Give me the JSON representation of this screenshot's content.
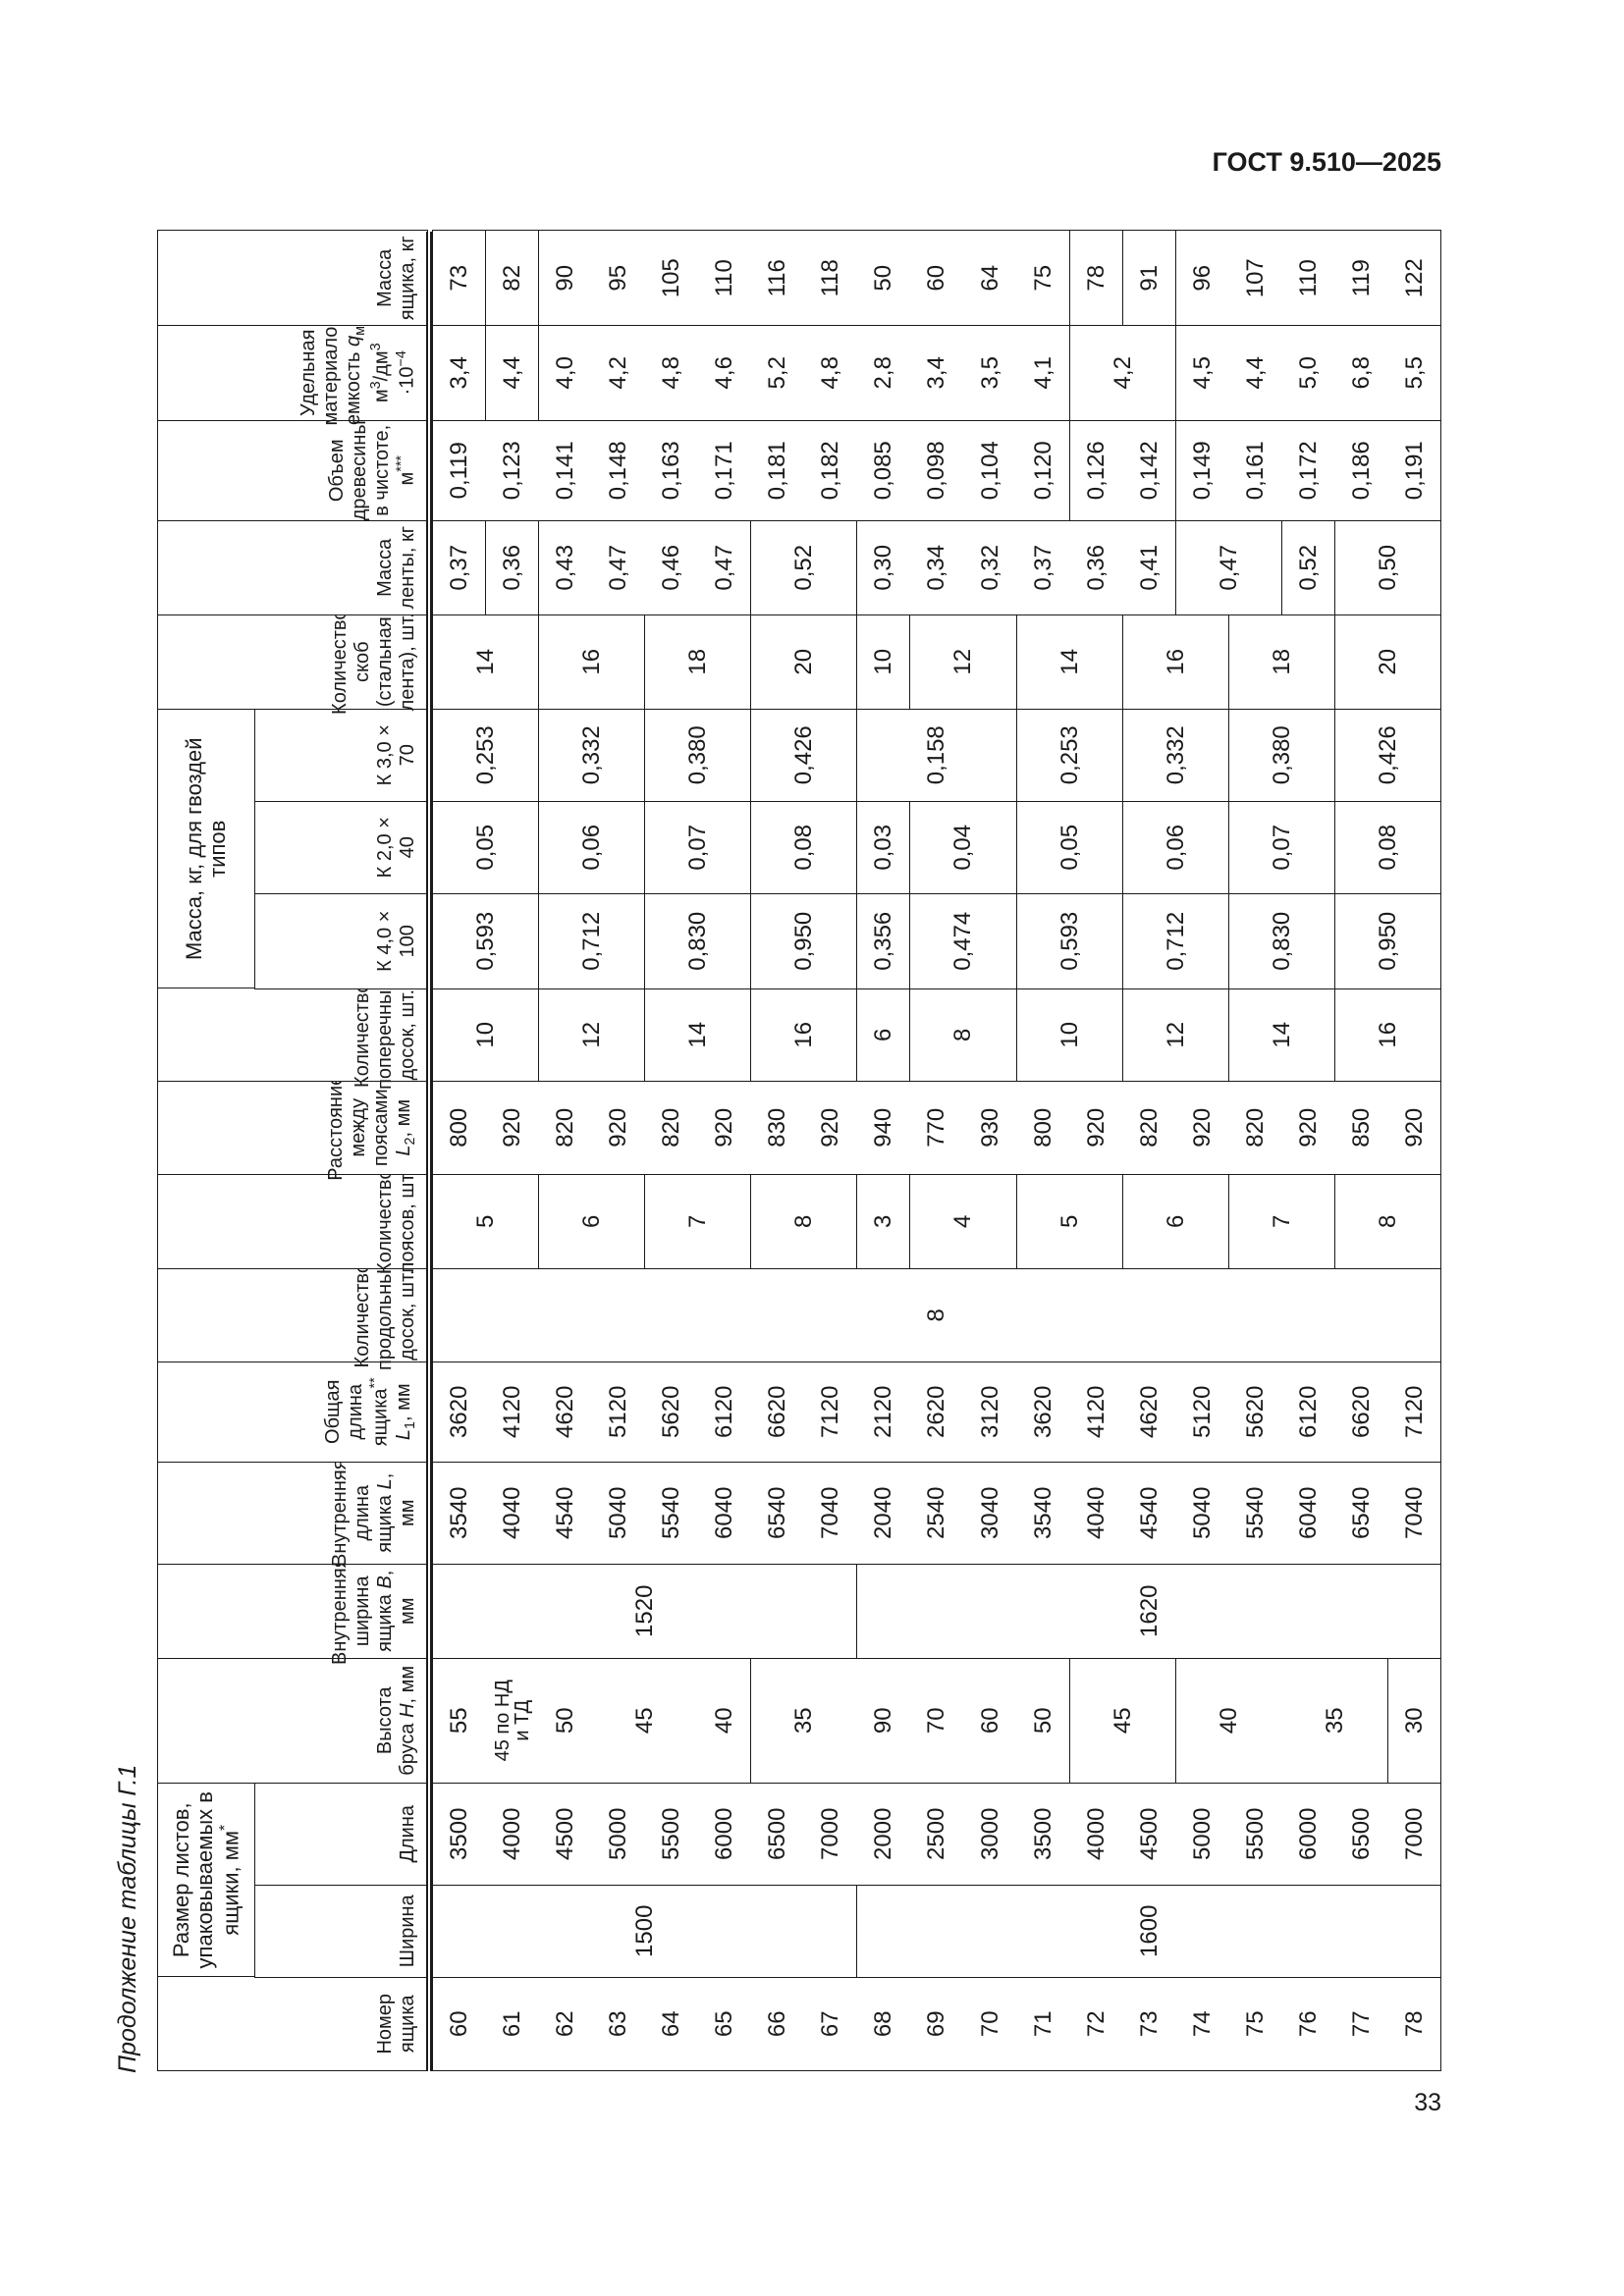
{
  "page": {
    "doc_id": "ГОСТ 9.510—2025",
    "caption": "Продолжение таблицы Г.1",
    "page_number": "33"
  },
  "table": {
    "super_headers": [
      {
        "covers": [
          1,
          2
        ],
        "label": [
          {
            "t": "Размер листов, упаковываемых в ящики, мм"
          },
          {
            "t": "*",
            "f": "sup"
          }
        ]
      },
      {
        "covers": [
          11,
          13
        ],
        "label": [
          {
            "t": "Масса, кг, для гвоздей типов"
          }
        ]
      }
    ],
    "columns": [
      {
        "header": [
          {
            "t": "Номер ящика"
          }
        ],
        "groups": [
          [
            "60",
            "61",
            "62",
            "63",
            "64",
            "65",
            "66",
            "67",
            "68",
            "69",
            "70",
            "71",
            "72",
            "73",
            "74",
            "75",
            "76",
            "77",
            "78"
          ]
        ]
      },
      {
        "header": [
          {
            "t": "Ширина"
          }
        ],
        "groups": [
          [
            {
              "v": "1500",
              "span": 8
            }
          ],
          [
            {
              "v": "1600",
              "span": 11
            }
          ]
        ]
      },
      {
        "header": [
          {
            "t": "Длина"
          }
        ],
        "groups": [
          [
            "3500",
            "4000",
            "4500",
            "5000",
            "5500",
            "6000",
            "6500",
            "7000",
            "2000",
            "2500",
            "3000",
            "3500",
            "4000",
            "4500",
            "5000",
            "5500",
            "6000",
            "6500",
            "7000"
          ]
        ]
      },
      {
        "header": [
          {
            "t": "Высота бруса "
          },
          {
            "t": "H",
            "f": "i"
          },
          {
            "t": ", мм"
          }
        ],
        "groups": [
          [
            "55",
            "45 по НД и ТД",
            "50",
            {
              "v": "45",
              "span": 2
            },
            "40"
          ],
          [
            {
              "v": "35",
              "span": 2
            },
            "90",
            "70",
            "60",
            "50"
          ],
          [
            {
              "v": "45",
              "span": 2
            }
          ],
          [
            {
              "v": "40",
              "span": 2
            },
            {
              "v": "35",
              "span": 2
            }
          ],
          [
            "30"
          ]
        ]
      },
      {
        "header": [
          {
            "t": "Внутренняя ширина ящика "
          },
          {
            "t": "B",
            "f": "i"
          },
          {
            "t": ", мм"
          }
        ],
        "groups": [
          [
            {
              "v": "1520",
              "span": 8
            }
          ],
          [
            {
              "v": "1620",
              "span": 11
            }
          ]
        ]
      },
      {
        "header": [
          {
            "t": "Внутренняя длина ящика "
          },
          {
            "t": "L",
            "f": "i"
          },
          {
            "t": ", мм"
          }
        ],
        "groups": [
          [
            "3540",
            "4040",
            "4540",
            "5040",
            "5540",
            "6040",
            "6540",
            "7040",
            "2040",
            "2540",
            "3040",
            "3540",
            "4040",
            "4540",
            "5040",
            "5540",
            "6040",
            "6540",
            "7040"
          ]
        ]
      },
      {
        "header": [
          {
            "t": "Общая длина ящика"
          },
          {
            "t": "**",
            "f": "sup"
          },
          {
            "t": " "
          },
          {
            "t": "L",
            "f": "i"
          },
          {
            "t": "1",
            "f": "sub"
          },
          {
            "t": ", мм"
          }
        ],
        "groups": [
          [
            "3620",
            "4120",
            "4620",
            "5120",
            "5620",
            "6120",
            "6620",
            "7120",
            "2120",
            "2620",
            "3120",
            "3620",
            "4120",
            "4620",
            "5120",
            "5620",
            "6120",
            "6620",
            "7120"
          ]
        ]
      },
      {
        "header": [
          {
            "t": "Количество продольных досок, шт."
          }
        ],
        "groups": [
          [
            {
              "v": "8",
              "span": 19
            }
          ]
        ]
      },
      {
        "header": [
          {
            "t": "Количество поясов, шт."
          }
        ],
        "groups": [
          [
            {
              "v": "5",
              "span": 2
            }
          ],
          [
            {
              "v": "6",
              "span": 2
            }
          ],
          [
            {
              "v": "7",
              "span": 2
            }
          ],
          [
            {
              "v": "8",
              "span": 2
            }
          ],
          [
            "3"
          ],
          [
            {
              "v": "4",
              "span": 2
            }
          ],
          [
            {
              "v": "5",
              "span": 2
            }
          ],
          [
            {
              "v": "6",
              "span": 2
            }
          ],
          [
            {
              "v": "7",
              "span": 2
            }
          ],
          [
            {
              "v": "8",
              "span": 2
            }
          ]
        ]
      },
      {
        "header": [
          {
            "t": "Расстояние между поясами "
          },
          {
            "t": "L",
            "f": "i"
          },
          {
            "t": "2",
            "f": "sub"
          },
          {
            "t": ", мм"
          }
        ],
        "groups": [
          [
            "800",
            "920",
            "820",
            "920",
            "820",
            "920",
            "830",
            "920",
            "940",
            "770",
            "930",
            "800",
            "920",
            "820",
            "920",
            "820",
            "920",
            "850",
            "920"
          ]
        ]
      },
      {
        "header": [
          {
            "t": "Количество поперечных досок, шт."
          }
        ],
        "groups": [
          [
            {
              "v": "10",
              "span": 2
            }
          ],
          [
            {
              "v": "12",
              "span": 2
            }
          ],
          [
            {
              "v": "14",
              "span": 2
            }
          ],
          [
            {
              "v": "16",
              "span": 2
            }
          ],
          [
            "6"
          ],
          [
            {
              "v": "8",
              "span": 2
            }
          ],
          [
            {
              "v": "10",
              "span": 2
            }
          ],
          [
            {
              "v": "12",
              "span": 2
            }
          ],
          [
            {
              "v": "14",
              "span": 2
            }
          ],
          [
            {
              "v": "16",
              "span": 2
            }
          ]
        ]
      },
      {
        "header": [
          {
            "t": "К 4,0 × 100"
          }
        ],
        "groups": [
          [
            {
              "v": "0,593",
              "span": 2
            }
          ],
          [
            {
              "v": "0,712",
              "span": 2
            }
          ],
          [
            {
              "v": "0,830",
              "span": 2
            }
          ],
          [
            {
              "v": "0,950",
              "span": 2
            }
          ],
          [
            "0,356"
          ],
          [
            {
              "v": "0,474",
              "span": 2
            }
          ],
          [
            {
              "v": "0,593",
              "span": 2
            }
          ],
          [
            {
              "v": "0,712",
              "span": 2
            }
          ],
          [
            {
              "v": "0,830",
              "span": 2
            }
          ],
          [
            {
              "v": "0,950",
              "span": 2
            }
          ]
        ]
      },
      {
        "header": [
          {
            "t": "К 2,0 × 40"
          }
        ],
        "groups": [
          [
            {
              "v": "0,05",
              "span": 2
            }
          ],
          [
            {
              "v": "0,06",
              "span": 2
            }
          ],
          [
            {
              "v": "0,07",
              "span": 2
            }
          ],
          [
            {
              "v": "0,08",
              "span": 2
            }
          ],
          [
            "0,03"
          ],
          [
            {
              "v": "0,04",
              "span": 2
            }
          ],
          [
            {
              "v": "0,05",
              "span": 2
            }
          ],
          [
            {
              "v": "0,06",
              "span": 2
            }
          ],
          [
            {
              "v": "0,07",
              "span": 2
            }
          ],
          [
            {
              "v": "0,08",
              "span": 2
            }
          ]
        ]
      },
      {
        "header": [
          {
            "t": "К 3,0 × 70"
          }
        ],
        "groups": [
          [
            {
              "v": "0,253",
              "span": 2
            }
          ],
          [
            {
              "v": "0,332",
              "span": 2
            }
          ],
          [
            {
              "v": "0,380",
              "span": 2
            }
          ],
          [
            {
              "v": "0,426",
              "span": 2
            }
          ],
          [
            {
              "v": "0,158",
              "span": 3
            }
          ],
          [
            {
              "v": "0,253",
              "span": 2
            }
          ],
          [
            {
              "v": "0,332",
              "span": 2
            }
          ],
          [
            {
              "v": "0,380",
              "span": 2
            }
          ],
          [
            {
              "v": "0,426",
              "span": 2
            }
          ]
        ]
      },
      {
        "header": [
          {
            "t": "Количество скоб (стальная лента), шт."
          }
        ],
        "groups": [
          [
            {
              "v": "14",
              "span": 2
            }
          ],
          [
            {
              "v": "16",
              "span": 2
            }
          ],
          [
            {
              "v": "18",
              "span": 2
            }
          ],
          [
            {
              "v": "20",
              "span": 2
            }
          ],
          [
            "10"
          ],
          [
            {
              "v": "12",
              "span": 2
            }
          ],
          [
            {
              "v": "14",
              "span": 2
            }
          ],
          [
            {
              "v": "16",
              "span": 2
            }
          ],
          [
            {
              "v": "18",
              "span": 2
            }
          ],
          [
            {
              "v": "20",
              "span": 2
            }
          ]
        ]
      },
      {
        "header": [
          {
            "t": "Масса ленты, кг"
          }
        ],
        "groups": [
          [
            "0,37"
          ],
          [
            "0,36"
          ],
          [
            "0,43",
            "0,47",
            "0,46",
            "0,47"
          ],
          [
            {
              "v": "0,52",
              "span": 2
            }
          ],
          [
            "0,30",
            "0,34",
            "0,32",
            "0,37",
            "0,36",
            "0,41"
          ],
          [
            {
              "v": "0,47",
              "span": 2
            }
          ],
          [
            "0,52"
          ],
          [
            {
              "v": "0,50",
              "span": 2
            }
          ]
        ]
      },
      {
        "header": [
          {
            "t": "Объем древесины в чистоте, м"
          },
          {
            "t": "***",
            "f": "sup"
          }
        ],
        "groups": [
          [
            "0,119",
            "0,123",
            "0,141",
            "0,148",
            "0,163",
            "0,171",
            "0,181",
            "0,182",
            "0,085",
            "0,098",
            "0,104",
            "0,120"
          ],
          [
            "0,126",
            "0,142"
          ],
          [
            "0,149",
            "0,161",
            "0,172",
            "0,186",
            "0,191"
          ]
        ]
      },
      {
        "header": [
          {
            "t": "Удельная материало-емкость "
          },
          {
            "t": "q",
            "f": "i"
          },
          {
            "t": "м",
            "f": "sub"
          },
          {
            "t": ", м"
          },
          {
            "t": "3",
            "f": "sup"
          },
          {
            "t": "/дм"
          },
          {
            "t": "3",
            "f": "sup"
          },
          {
            "t": " ·10"
          },
          {
            "t": "−4",
            "f": "sup"
          }
        ],
        "groups": [
          [
            "3,4"
          ],
          [
            "4,4"
          ],
          [
            "4,0",
            "4,2",
            "4,8",
            "4,6",
            "5,2",
            "4,8",
            "2,8",
            "3,4",
            "3,5",
            "4,1"
          ],
          [
            {
              "v": "4,2",
              "span": 2
            }
          ],
          [
            "4,5",
            "4,4",
            "5,0",
            "6,8",
            "5,5"
          ]
        ]
      },
      {
        "header": [
          {
            "t": "Масса ящика, кг"
          }
        ],
        "groups": [
          [
            "73"
          ],
          [
            "82"
          ],
          [
            "90",
            "95",
            "105",
            "110",
            "116",
            "118",
            "50",
            "60",
            "64",
            "75"
          ],
          [
            "78"
          ],
          [
            "91"
          ],
          [
            "96",
            "107",
            "110",
            "119",
            "122"
          ]
        ]
      }
    ]
  }
}
